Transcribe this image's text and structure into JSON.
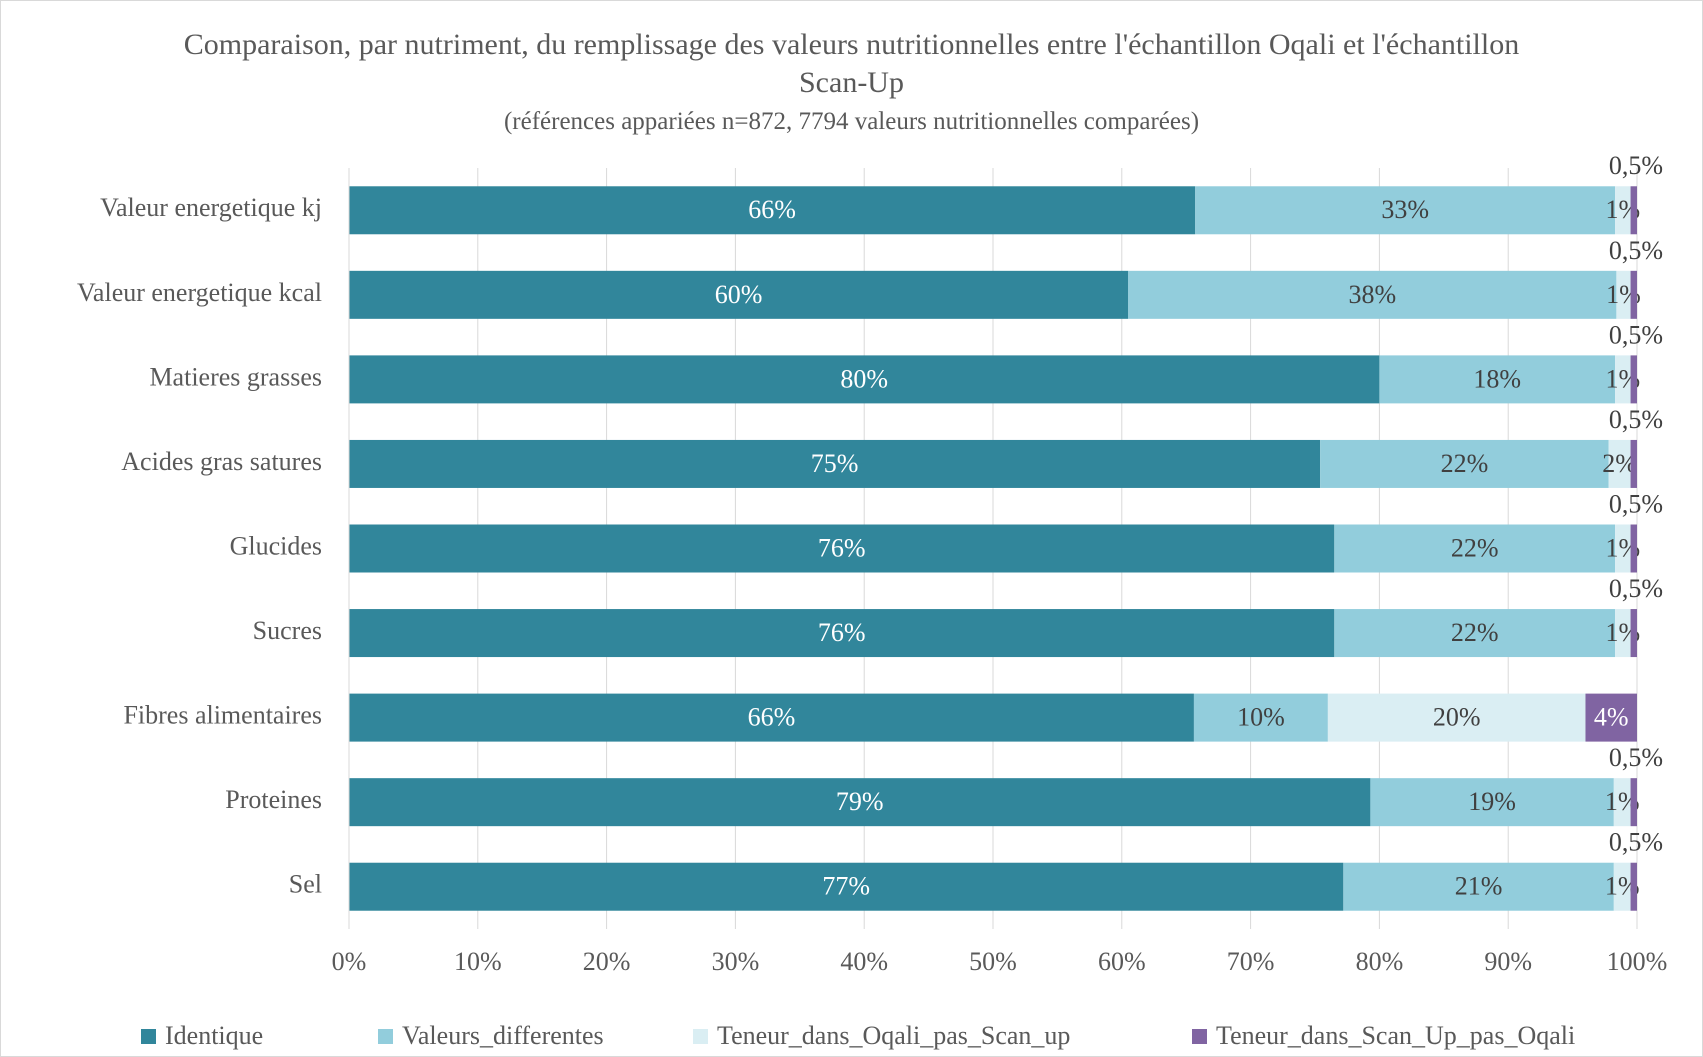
{
  "chart_data": {
    "type": "stacked_bar_horizontal",
    "title": "Comparaison, par nutriment, du remplissage des valeurs nutritionnelles entre l'échantillon Oqali et l'échantillon Scan-Up",
    "subtitle": "(références appariées n=872, 7794 valeurs nutritionnelles comparées)",
    "categories": [
      "Valeur energetique kj",
      "Valeur energetique kcal",
      "Matieres grasses",
      "Acides gras satures",
      "Glucides",
      "Sucres",
      "Fibres alimentaires",
      "Proteines",
      "Sel"
    ],
    "series": [
      {
        "name": "Identique",
        "color": "#31869b",
        "values": [
          65.7,
          60.5,
          80.0,
          75.4,
          76.5,
          76.5,
          65.6,
          79.3,
          77.2
        ],
        "value_labels": [
          "66%",
          "60%",
          "80%",
          "75%",
          "76%",
          "76%",
          "66%",
          "79%",
          "77%"
        ]
      },
      {
        "name": "Valeurs_differentes",
        "color": "#92cddc",
        "values": [
          32.6,
          37.9,
          18.3,
          22.4,
          21.8,
          21.8,
          10.4,
          18.9,
          21.0
        ],
        "value_labels": [
          "33%",
          "38%",
          "18%",
          "22%",
          "22%",
          "22%",
          "10%",
          "19%",
          "21%"
        ]
      },
      {
        "name": "Teneur_dans_Oqali_pas_Scan_up",
        "color": "#daeef3",
        "values": [
          1.2,
          1.1,
          1.2,
          1.7,
          1.2,
          1.2,
          20.0,
          1.3,
          1.3
        ],
        "value_labels": [
          "1%",
          "1%",
          "1%",
          "2%",
          "1%",
          "1%",
          "20%",
          "1%",
          "1%"
        ]
      },
      {
        "name": "Teneur_dans_Scan_Up_pas_Oqali",
        "color": "#8064a2",
        "values": [
          0.5,
          0.5,
          0.5,
          0.5,
          0.5,
          0.5,
          4.0,
          0.5,
          0.5
        ],
        "value_labels": [
          "0,5%",
          "0,5%",
          "0,5%",
          "0,5%",
          "0,5%",
          "0,5%",
          "4%",
          "0,5%",
          "0,5%"
        ]
      }
    ],
    "xlim": [
      0,
      100
    ],
    "xticks": [
      {
        "value": 0,
        "label": "0%"
      },
      {
        "value": 10,
        "label": "10%"
      },
      {
        "value": 20,
        "label": "20%"
      },
      {
        "value": 30,
        "label": "30%"
      },
      {
        "value": 40,
        "label": "40%"
      },
      {
        "value": 50,
        "label": "50%"
      },
      {
        "value": 60,
        "label": "60%"
      },
      {
        "value": 70,
        "label": "70%"
      },
      {
        "value": 80,
        "label": "80%"
      },
      {
        "value": 90,
        "label": "90%"
      },
      {
        "value": 100,
        "label": "100%"
      }
    ],
    "grid": true,
    "legend": "bottom"
  }
}
